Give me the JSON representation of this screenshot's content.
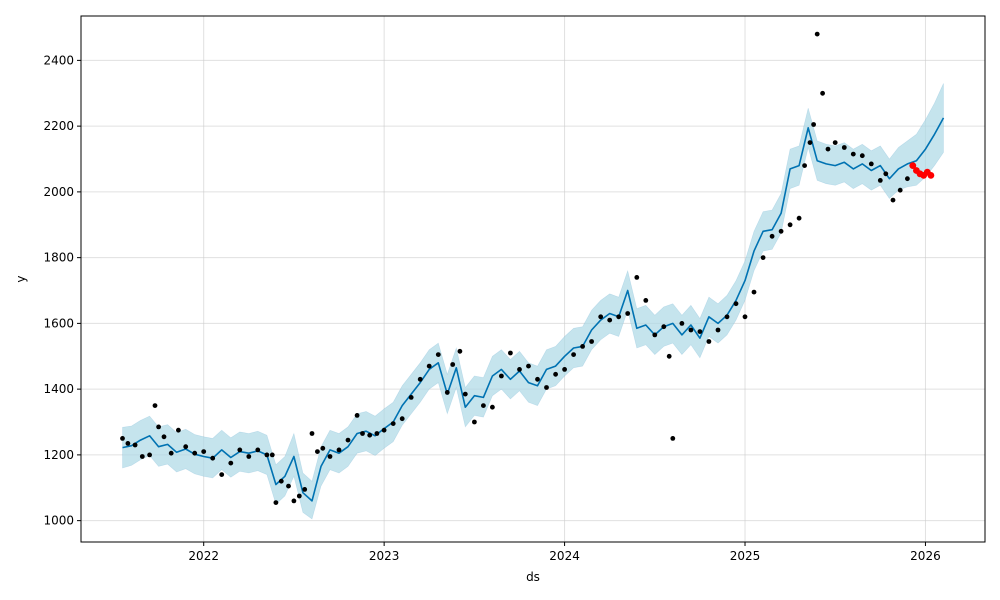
{
  "chart_data": {
    "type": "line",
    "title": "",
    "xlabel": "ds",
    "ylabel": "y",
    "xlim": [
      2021.32,
      2026.33
    ],
    "ylim": [
      935,
      2535
    ],
    "grid": true,
    "x_ticks": [
      "2022",
      "2023",
      "2024",
      "2025",
      "2026"
    ],
    "y_ticks": [
      1000,
      1200,
      1400,
      1600,
      1800,
      2000,
      2200,
      2400
    ],
    "colors": {
      "actual": "#000000",
      "forecast": "#0072B2",
      "interval": "#add8e6",
      "test_points": "#ff0000"
    },
    "series": [
      {
        "kind": "forecast_line",
        "x": [
          2021.55,
          2021.6,
          2021.65,
          2021.7,
          2021.75,
          2021.8,
          2021.85,
          2021.9,
          2021.95,
          2022.0,
          2022.05,
          2022.1,
          2022.15,
          2022.2,
          2022.25,
          2022.3,
          2022.35,
          2022.4,
          2022.45,
          2022.5,
          2022.55,
          2022.6,
          2022.65,
          2022.7,
          2022.75,
          2022.8,
          2022.85,
          2022.9,
          2022.95,
          2023.0,
          2023.05,
          2023.1,
          2023.15,
          2023.2,
          2023.25,
          2023.3,
          2023.35,
          2023.4,
          2023.45,
          2023.5,
          2023.55,
          2023.6,
          2023.65,
          2023.7,
          2023.75,
          2023.8,
          2023.85,
          2023.9,
          2023.95,
          2024.0,
          2024.05,
          2024.1,
          2024.15,
          2024.2,
          2024.25,
          2024.3,
          2024.35,
          2024.4,
          2024.45,
          2024.5,
          2024.55,
          2024.6,
          2024.65,
          2024.7,
          2024.75,
          2024.8,
          2024.85,
          2024.9,
          2024.95,
          2025.0,
          2025.05,
          2025.1,
          2025.15,
          2025.2,
          2025.25,
          2025.3,
          2025.35,
          2025.4,
          2025.45,
          2025.5,
          2025.55,
          2025.6,
          2025.65,
          2025.7,
          2025.75,
          2025.8,
          2025.85,
          2025.9,
          2025.95,
          2026.0,
          2026.05,
          2026.1
        ],
        "y": [
          1222,
          1228,
          1245,
          1258,
          1225,
          1232,
          1208,
          1218,
          1202,
          1195,
          1190,
          1215,
          1192,
          1210,
          1205,
          1212,
          1200,
          1110,
          1135,
          1195,
          1085,
          1060,
          1165,
          1215,
          1205,
          1225,
          1265,
          1272,
          1258,
          1280,
          1300,
          1350,
          1385,
          1420,
          1460,
          1480,
          1385,
          1465,
          1345,
          1380,
          1375,
          1440,
          1460,
          1430,
          1455,
          1420,
          1410,
          1460,
          1470,
          1500,
          1525,
          1530,
          1580,
          1610,
          1630,
          1620,
          1700,
          1585,
          1595,
          1565,
          1590,
          1600,
          1565,
          1595,
          1555,
          1620,
          1600,
          1625,
          1670,
          1730,
          1820,
          1880,
          1885,
          1935,
          2070,
          2080,
          2195,
          2095,
          2085,
          2080,
          2090,
          2070,
          2085,
          2065,
          2080,
          2040,
          2070,
          2085,
          2095,
          2130,
          2175,
          2225
        ]
      },
      {
        "kind": "uncertainty_interval",
        "x": [
          2021.55,
          2021.6,
          2021.65,
          2021.7,
          2021.75,
          2021.8,
          2021.85,
          2021.9,
          2021.95,
          2022.0,
          2022.05,
          2022.1,
          2022.15,
          2022.2,
          2022.25,
          2022.3,
          2022.35,
          2022.4,
          2022.45,
          2022.5,
          2022.55,
          2022.6,
          2022.65,
          2022.7,
          2022.75,
          2022.8,
          2022.85,
          2022.9,
          2022.95,
          2023.0,
          2023.05,
          2023.1,
          2023.15,
          2023.2,
          2023.25,
          2023.3,
          2023.35,
          2023.4,
          2023.45,
          2023.5,
          2023.55,
          2023.6,
          2023.65,
          2023.7,
          2023.75,
          2023.8,
          2023.85,
          2023.9,
          2023.95,
          2024.0,
          2024.05,
          2024.1,
          2024.15,
          2024.2,
          2024.25,
          2024.3,
          2024.35,
          2024.4,
          2024.45,
          2024.5,
          2024.55,
          2024.6,
          2024.65,
          2024.7,
          2024.75,
          2024.8,
          2024.85,
          2024.9,
          2024.95,
          2025.0,
          2025.05,
          2025.1,
          2025.15,
          2025.2,
          2025.25,
          2025.3,
          2025.35,
          2025.4,
          2025.45,
          2025.5,
          2025.55,
          2025.6,
          2025.65,
          2025.7,
          2025.75,
          2025.8,
          2025.85,
          2025.9,
          2025.95,
          2026.0,
          2026.05,
          2026.1
        ],
        "lower": [
          1160,
          1168,
          1185,
          1198,
          1165,
          1172,
          1148,
          1158,
          1142,
          1135,
          1130,
          1155,
          1132,
          1150,
          1145,
          1152,
          1140,
          1050,
          1075,
          1135,
          1025,
          1005,
          1105,
          1155,
          1145,
          1165,
          1205,
          1212,
          1198,
          1220,
          1240,
          1290,
          1325,
          1360,
          1400,
          1420,
          1325,
          1405,
          1285,
          1320,
          1315,
          1380,
          1400,
          1370,
          1395,
          1360,
          1350,
          1400,
          1410,
          1440,
          1465,
          1470,
          1520,
          1550,
          1570,
          1560,
          1640,
          1525,
          1535,
          1505,
          1530,
          1540,
          1505,
          1535,
          1495,
          1560,
          1540,
          1565,
          1610,
          1670,
          1760,
          1820,
          1825,
          1875,
          2010,
          2020,
          2135,
          2035,
          2025,
          2020,
          2030,
          2010,
          2025,
          2005,
          2020,
          1980,
          2005,
          2015,
          2020,
          2045,
          2080,
          2120
        ],
        "upper": [
          1284,
          1288,
          1305,
          1318,
          1285,
          1292,
          1268,
          1278,
          1262,
          1255,
          1250,
          1275,
          1252,
          1270,
          1265,
          1272,
          1260,
          1170,
          1195,
          1265,
          1145,
          1120,
          1225,
          1275,
          1265,
          1285,
          1325,
          1332,
          1318,
          1340,
          1360,
          1410,
          1445,
          1480,
          1520,
          1540,
          1445,
          1525,
          1405,
          1440,
          1435,
          1500,
          1520,
          1490,
          1515,
          1480,
          1470,
          1520,
          1530,
          1560,
          1585,
          1590,
          1640,
          1670,
          1690,
          1680,
          1760,
          1645,
          1655,
          1625,
          1650,
          1660,
          1625,
          1655,
          1615,
          1680,
          1660,
          1685,
          1730,
          1790,
          1880,
          1940,
          1945,
          1995,
          2130,
          2140,
          2255,
          2155,
          2145,
          2140,
          2150,
          2130,
          2145,
          2125,
          2140,
          2100,
          2135,
          2155,
          2175,
          2220,
          2270,
          2330
        ]
      },
      {
        "kind": "actual_points",
        "x": [
          2021.55,
          2021.58,
          2021.62,
          2021.66,
          2021.7,
          2021.73,
          2021.75,
          2021.78,
          2021.82,
          2021.86,
          2021.9,
          2021.95,
          2022.0,
          2022.05,
          2022.1,
          2022.15,
          2022.2,
          2022.25,
          2022.3,
          2022.35,
          2022.38,
          2022.4,
          2022.43,
          2022.47,
          2022.5,
          2022.53,
          2022.56,
          2022.6,
          2022.63,
          2022.66,
          2022.7,
          2022.75,
          2022.8,
          2022.85,
          2022.88,
          2022.92,
          2022.96,
          2023.0,
          2023.05,
          2023.1,
          2023.15,
          2023.2,
          2023.25,
          2023.3,
          2023.35,
          2023.38,
          2023.42,
          2023.45,
          2023.5,
          2023.55,
          2023.6,
          2023.65,
          2023.7,
          2023.75,
          2023.8,
          2023.85,
          2023.9,
          2023.95,
          2024.0,
          2024.05,
          2024.1,
          2024.15,
          2024.2,
          2024.25,
          2024.3,
          2024.35,
          2024.4,
          2024.45,
          2024.5,
          2024.55,
          2024.58,
          2024.6,
          2024.65,
          2024.7,
          2024.75,
          2024.8,
          2024.85,
          2024.9,
          2024.95,
          2025.0,
          2025.05,
          2025.1,
          2025.15,
          2025.2,
          2025.25,
          2025.3,
          2025.33,
          2025.36,
          2025.38,
          2025.4,
          2025.43,
          2025.46,
          2025.5,
          2025.55,
          2025.6,
          2025.65,
          2025.7,
          2025.75,
          2025.78,
          2025.82,
          2025.86,
          2025.9
        ],
        "y": [
          1250,
          1235,
          1230,
          1195,
          1200,
          1350,
          1285,
          1255,
          1205,
          1275,
          1225,
          1205,
          1210,
          1190,
          1140,
          1175,
          1215,
          1195,
          1215,
          1200,
          1200,
          1055,
          1120,
          1105,
          1060,
          1075,
          1095,
          1265,
          1210,
          1220,
          1195,
          1215,
          1245,
          1320,
          1265,
          1260,
          1265,
          1275,
          1295,
          1310,
          1375,
          1430,
          1470,
          1505,
          1390,
          1475,
          1515,
          1385,
          1300,
          1350,
          1345,
          1440,
          1510,
          1460,
          1470,
          1430,
          1405,
          1445,
          1460,
          1505,
          1530,
          1545,
          1620,
          1610,
          1620,
          1630,
          1740,
          1670,
          1565,
          1590,
          1500,
          1250,
          1600,
          1580,
          1575,
          1545,
          1580,
          1620,
          1660,
          1620,
          1695,
          1800,
          1865,
          1880,
          1900,
          1920,
          2080,
          2150,
          2205,
          2480,
          2300,
          2130,
          2150,
          2135,
          2115,
          2110,
          2085,
          2035,
          2055,
          1975,
          2005,
          2040
        ]
      },
      {
        "kind": "test_points",
        "x": [
          2025.93,
          2025.95,
          2025.97,
          2025.99,
          2026.01,
          2026.03
        ],
        "y": [
          2080,
          2065,
          2055,
          2050,
          2060,
          2050
        ]
      }
    ]
  }
}
